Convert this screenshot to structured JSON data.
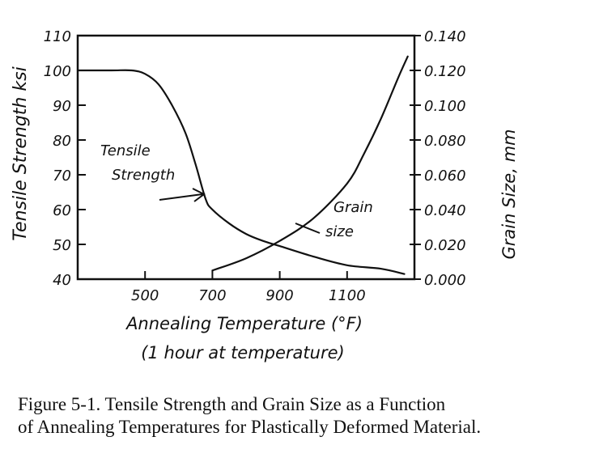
{
  "chart_data": {
    "type": "line",
    "x_label_line1": "Annealing Temperature (°F)",
    "x_label_line2": "(1 hour at temperature)",
    "x_ticks": [
      500,
      700,
      900,
      1100
    ],
    "xlim": [
      300,
      1300
    ],
    "y_left": {
      "label": "Tensile Strength ksi",
      "ticks": [
        40,
        50,
        60,
        70,
        80,
        90,
        100,
        110
      ],
      "ylim": [
        40,
        110
      ]
    },
    "y_right": {
      "label": "Grain Size, mm",
      "ticks": [
        "0.000",
        "0.020",
        "0.040",
        "0.060",
        "0.080",
        "0.100",
        "0.120",
        "0.140"
      ],
      "ylim": [
        0,
        0.14
      ]
    },
    "series": [
      {
        "name": "Tensile Strength",
        "axis": "left",
        "x": [
          300,
          400,
          460,
          500,
          540,
          580,
          620,
          650,
          680,
          700,
          750,
          800,
          850,
          900,
          1000,
          1100,
          1200,
          1270
        ],
        "y": [
          100,
          100,
          100,
          99,
          96,
          90,
          82,
          73,
          63,
          60,
          56,
          53,
          51,
          49.5,
          46.5,
          44,
          43,
          41.5
        ]
      },
      {
        "name": "Grain size",
        "axis": "right",
        "x": [
          700,
          800,
          900,
          1000,
          1100,
          1150,
          1200,
          1250,
          1280
        ],
        "y": [
          0.005,
          0.012,
          0.022,
          0.035,
          0.055,
          0.072,
          0.092,
          0.115,
          0.128
        ]
      }
    ]
  },
  "annotations": {
    "tensile_label_line1": "Tensile",
    "tensile_label_line2": "Strength",
    "grain_label_line1": "Grain",
    "grain_label_line2": "size"
  },
  "caption": {
    "line1": "Figure 5-1.  Tensile Strength and Grain Size as a Function",
    "line2": "of Annealing Temperatures for Plastically Deformed Material."
  }
}
